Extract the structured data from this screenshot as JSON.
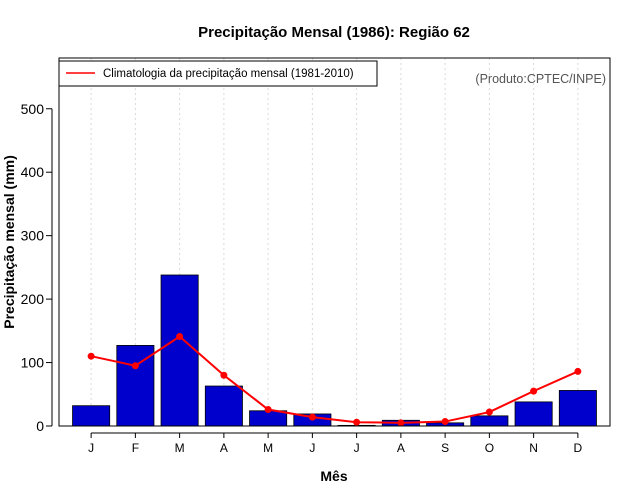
{
  "chart_data": {
    "type": "bar",
    "title": "Precipitação Mensal (1986): Região 62",
    "xlabel": "Mês",
    "ylabel": "Precipitação mensal (mm)",
    "categories": [
      "J",
      "F",
      "M",
      "A",
      "M",
      "J",
      "J",
      "A",
      "S",
      "O",
      "N",
      "D"
    ],
    "ylim": [
      0,
      580
    ],
    "yticks": [
      0,
      100,
      200,
      300,
      400,
      500
    ],
    "grid": "vertical dotted",
    "legend_position": "top-left",
    "credit": "(Produto:CPTEC/INPE)",
    "series": [
      {
        "name": "Precipitação mensal (1986)",
        "kind": "bar",
        "color": "#0000cc",
        "values": [
          32,
          127,
          238,
          63,
          24,
          19,
          1,
          9,
          5,
          16,
          38,
          56
        ]
      },
      {
        "name": "Climatologia da precipitação mensal (1981-2010)",
        "kind": "line",
        "color": "#ff0000",
        "values": [
          110,
          95,
          141,
          80,
          26,
          14,
          6,
          5,
          7,
          22,
          55,
          86
        ]
      }
    ]
  }
}
